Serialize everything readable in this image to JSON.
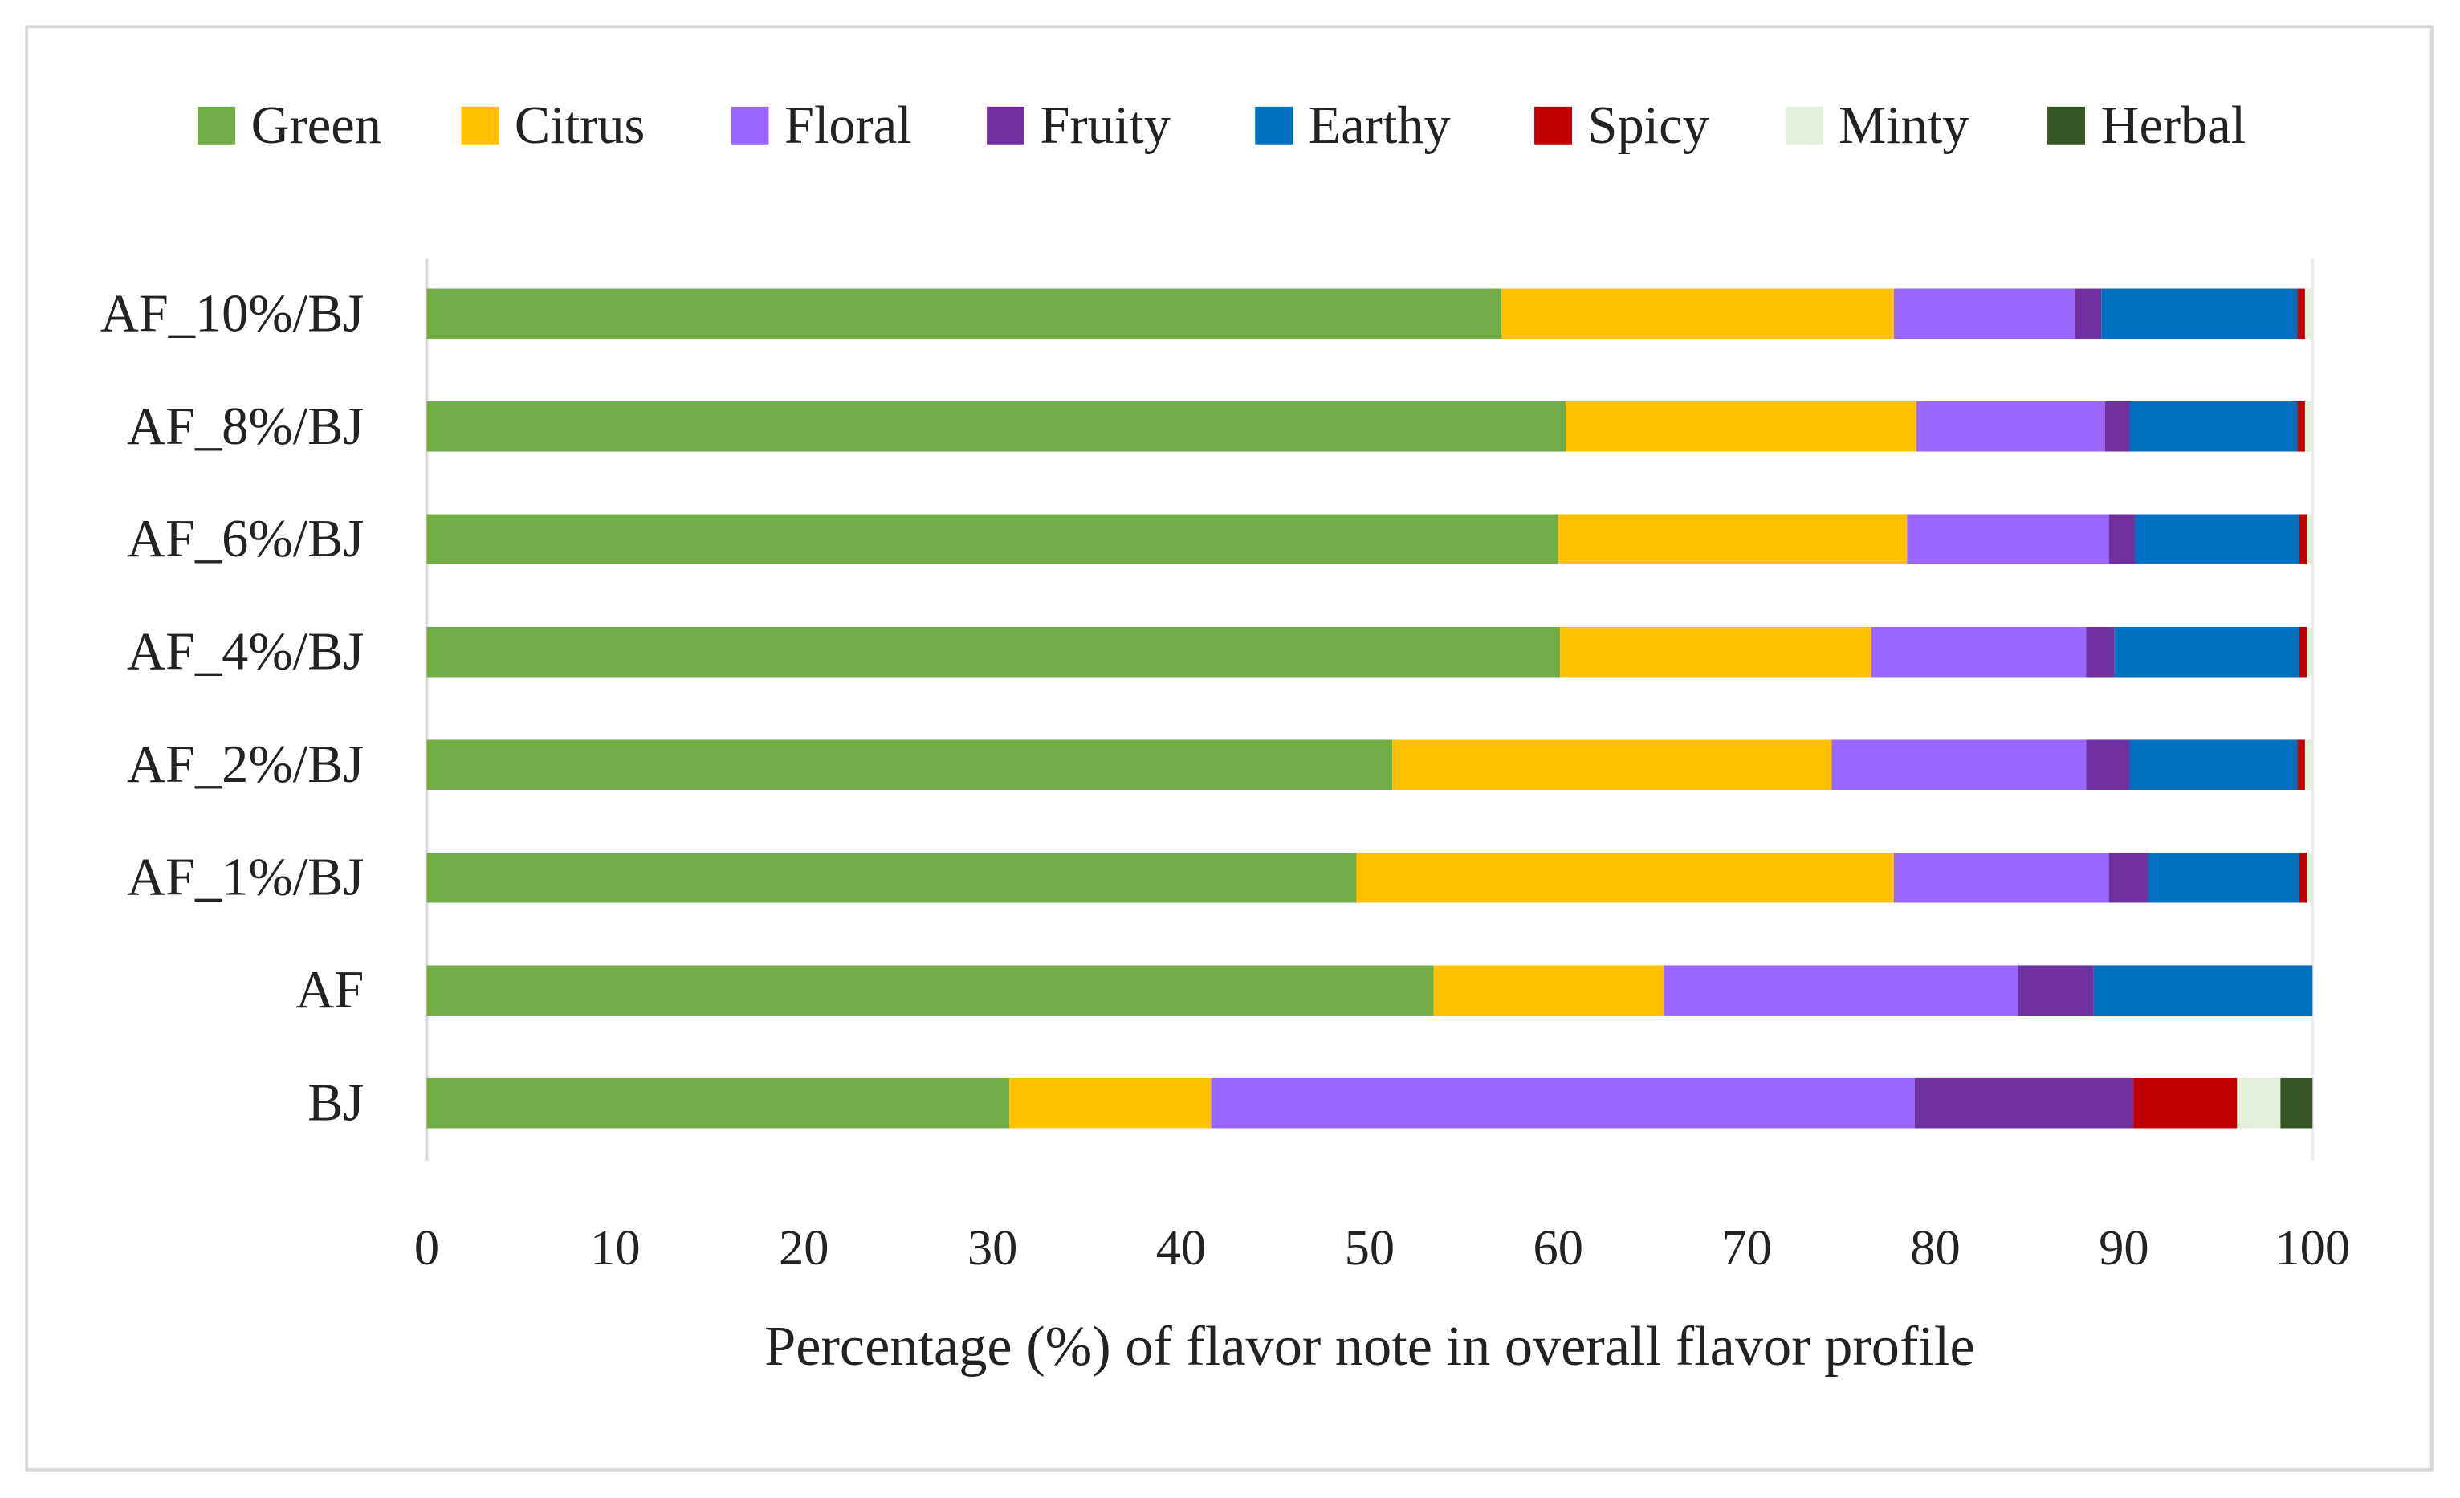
{
  "chart_data": {
    "type": "bar",
    "orientation": "horizontal",
    "stacked": true,
    "title": "",
    "xlabel": "Percentage (%) of flavor note in overall flavor profile",
    "ylabel": "",
    "xlim": [
      0,
      100
    ],
    "xticks": [
      "0",
      "10",
      "20",
      "30",
      "40",
      "50",
      "60",
      "70",
      "80",
      "90",
      "100"
    ],
    "legend_position": "top",
    "grid": false,
    "categories": [
      "AF_10%/BJ",
      "AF_8%/BJ",
      "AF_6%/BJ",
      "AF_4%/BJ",
      "AF_2%/BJ",
      "AF_1%/BJ",
      "AF",
      "BJ"
    ],
    "series": [
      {
        "name": "Green",
        "color": "#70AD47",
        "values": [
          57.0,
          60.4,
          60.0,
          60.1,
          51.2,
          49.3,
          53.4,
          30.9
        ]
      },
      {
        "name": "Citrus",
        "color": "#FFC000",
        "values": [
          20.8,
          18.6,
          18.5,
          16.5,
          23.3,
          28.5,
          12.2,
          10.7
        ]
      },
      {
        "name": "Floral",
        "color": "#9966FF",
        "values": [
          9.6,
          10.0,
          10.7,
          11.4,
          13.5,
          11.4,
          18.8,
          37.3
        ]
      },
      {
        "name": "Fruity",
        "color": "#7030A0",
        "values": [
          1.4,
          1.3,
          1.4,
          1.5,
          2.3,
          2.1,
          4.0,
          11.6
        ]
      },
      {
        "name": "Earthy",
        "color": "#0070C0",
        "values": [
          10.4,
          8.9,
          8.7,
          9.8,
          8.9,
          8.0,
          11.6,
          0
        ]
      },
      {
        "name": "Spicy",
        "color": "#C00000",
        "values": [
          0.4,
          0.4,
          0.4,
          0.4,
          0.4,
          0.4,
          0,
          5.5
        ]
      },
      {
        "name": "Minty",
        "color": "#E2EFDA",
        "values": [
          0.4,
          0.4,
          0.3,
          0.3,
          0.4,
          0.3,
          0,
          2.3
        ]
      },
      {
        "name": "Herbal",
        "color": "#375623",
        "values": [
          0,
          0,
          0,
          0,
          0,
          0,
          0,
          1.7
        ]
      }
    ]
  }
}
